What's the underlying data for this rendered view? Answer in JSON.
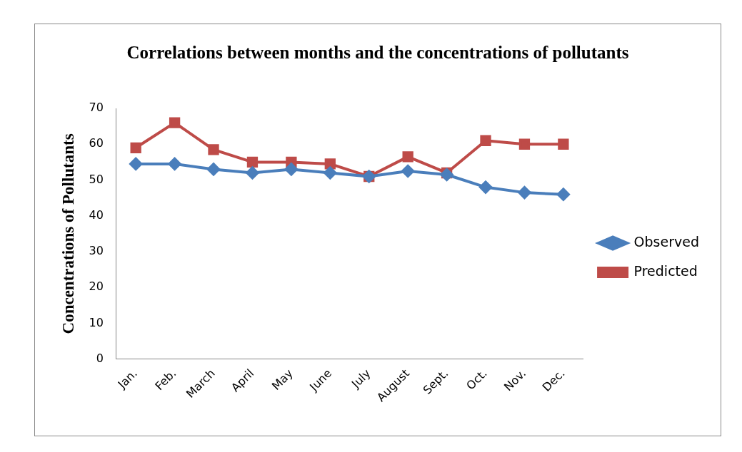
{
  "chart_data": {
    "type": "line",
    "title": "Correlations between months and the concentrations of pollutants",
    "ylabel": "Concentrations of Pollutants",
    "categories": [
      "Jan.",
      "Feb.",
      "March",
      "April",
      "May",
      "June",
      "July",
      "August",
      "Sept.",
      "Oct.",
      "Nov.",
      "Dec."
    ],
    "series": [
      {
        "name": "Observed",
        "color": "#4a7ebb",
        "marker": "diamond",
        "values": [
          54.5,
          54.5,
          53,
          52,
          53,
          52,
          51,
          52.5,
          51.5,
          48,
          46.5,
          46
        ]
      },
      {
        "name": "Predicted",
        "color": "#be4b48",
        "marker": "square",
        "values": [
          59,
          66,
          58.5,
          55,
          55,
          54.5,
          51,
          56.5,
          52,
          61,
          60,
          60
        ]
      }
    ],
    "ylim": [
      0,
      70
    ],
    "yticks": [
      0,
      10,
      20,
      30,
      40,
      50,
      60,
      70
    ],
    "grid": false,
    "legend": "right"
  }
}
